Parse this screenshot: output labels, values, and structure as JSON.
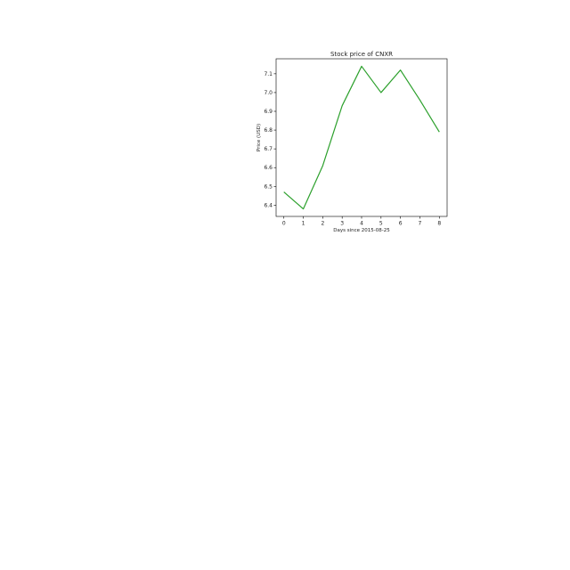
{
  "chart_data": {
    "type": "line",
    "title": "Stock price of CNXR",
    "xlabel": "Days since 2015-08-25",
    "ylabel": "Price (USD)",
    "x": [
      0,
      1,
      2,
      3,
      4,
      5,
      6,
      7,
      8
    ],
    "xticks": [
      "0",
      "1",
      "2",
      "3",
      "4",
      "5",
      "6",
      "7",
      "8"
    ],
    "yticks": [
      6.4,
      6.5,
      6.6,
      6.7,
      6.8,
      6.9,
      7.0,
      7.1
    ],
    "ytick_labels": [
      "6.4",
      "6.5",
      "6.6",
      "6.7",
      "6.8",
      "6.9",
      "7.0",
      "7.1"
    ],
    "xlim": [
      -0.4,
      8.4
    ],
    "ylim": [
      6.34,
      7.18
    ],
    "grid": false,
    "series": [
      {
        "color": "#2ca02c",
        "values": [
          6.47,
          6.38,
          6.61,
          6.93,
          7.14,
          7.0,
          7.12,
          6.96,
          6.79
        ]
      }
    ]
  }
}
